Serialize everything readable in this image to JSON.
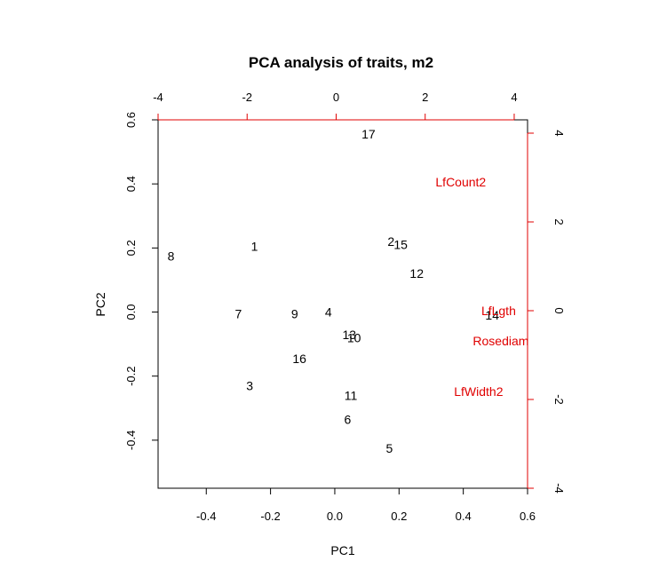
{
  "chart_data": {
    "type": "scatter",
    "title": "PCA analysis of traits, m2",
    "xlabel": "PC1",
    "ylabel": "PC2",
    "xlim": [
      -0.55,
      0.6
    ],
    "ylim": [
      -0.55,
      0.6
    ],
    "x_ticks": [
      -0.4,
      -0.2,
      0.0,
      0.2,
      0.4,
      0.6
    ],
    "y_ticks": [
      -0.4,
      -0.2,
      0.0,
      0.2,
      0.4,
      0.6
    ],
    "x_tick_labels": [
      "-0.4",
      "-0.2",
      "0.0",
      "0.2",
      "0.4",
      "0.6"
    ],
    "y_tick_labels": [
      "-0.4",
      "-0.2",
      "0.0",
      "0.2",
      "0.4",
      "0.6"
    ],
    "top_axis": {
      "lim": [
        -4,
        4.3
      ],
      "ticks": [
        -4,
        -2,
        0,
        2,
        4
      ],
      "tick_labels": [
        "-4",
        "-2",
        "0",
        "2",
        "4"
      ],
      "color": "#e00000"
    },
    "right_axis": {
      "lim": [
        -4,
        4.3
      ],
      "ticks": [
        -4,
        -2,
        0,
        2,
        4
      ],
      "tick_labels": [
        "-4",
        "-2",
        "0",
        "2",
        "4"
      ],
      "color": "#e00000"
    },
    "points": [
      {
        "label": "1",
        "x": -0.25,
        "y": 0.205
      },
      {
        "label": "2",
        "x": 0.175,
        "y": 0.22
      },
      {
        "label": "3",
        "x": -0.265,
        "y": -0.23
      },
      {
        "label": "4",
        "x": -0.02,
        "y": 0.0
      },
      {
        "label": "5",
        "x": 0.17,
        "y": -0.425
      },
      {
        "label": "6",
        "x": 0.04,
        "y": -0.335
      },
      {
        "label": "7",
        "x": -0.3,
        "y": -0.005
      },
      {
        "label": "9",
        "x": -0.125,
        "y": -0.005
      },
      {
        "label": "8",
        "x": -0.51,
        "y": 0.175
      },
      {
        "label": "10",
        "x": 0.06,
        "y": -0.08
      },
      {
        "label": "11",
        "x": 0.05,
        "y": -0.26
      },
      {
        "label": "12",
        "x": 0.255,
        "y": 0.12
      },
      {
        "label": "13",
        "x": 0.045,
        "y": -0.07
      },
      {
        "label": "14",
        "x": 0.49,
        "y": -0.01
      },
      {
        "label": "15",
        "x": 0.205,
        "y": 0.21
      },
      {
        "label": "16",
        "x": -0.11,
        "y": -0.145
      },
      {
        "label": "17",
        "x": 0.105,
        "y": 0.555
      }
    ],
    "variables": [
      {
        "label": "LfCount2",
        "x": 2.8,
        "y": 2.9
      },
      {
        "label": "LfLgth",
        "x": 3.65,
        "y": 0.0
      },
      {
        "label": "Rosediam",
        "x": 3.7,
        "y": -0.68
      },
      {
        "label": "LfWidth2",
        "x": 3.2,
        "y": -1.82
      }
    ],
    "point_color": "#000000",
    "variable_color": "#e00000"
  }
}
